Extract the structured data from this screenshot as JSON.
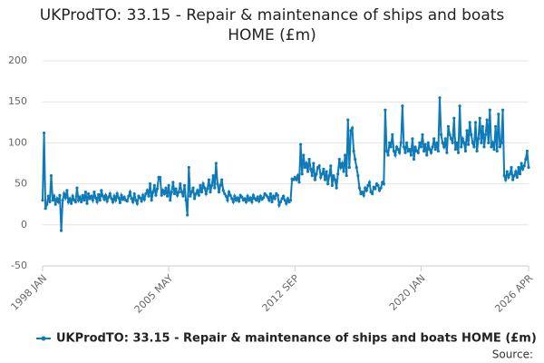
{
  "chart_data": {
    "type": "line",
    "title": "UKProdTO: 33.15 - Repair & maintenance of ships and boats HOME (£m)",
    "source": "Source:",
    "categories": [
      "1998 JAN",
      null,
      null,
      null,
      null,
      null,
      null,
      null,
      null,
      null,
      null,
      null,
      null,
      null,
      null,
      null,
      null,
      null,
      null,
      null,
      null,
      null,
      null,
      null,
      null,
      null,
      null,
      null,
      null,
      null,
      null,
      null,
      null,
      null,
      null,
      null,
      null,
      null,
      null,
      null,
      null,
      null,
      null,
      null,
      null,
      null,
      null,
      null,
      null,
      null,
      null,
      null,
      null,
      null,
      null,
      null,
      null,
      null,
      null,
      null,
      null,
      null,
      null,
      null,
      null,
      null,
      null,
      null,
      null,
      null,
      null,
      null,
      null,
      null,
      null,
      null,
      null,
      null,
      null,
      null,
      null,
      null,
      null,
      null,
      null,
      null,
      null,
      null,
      "2005 MAY",
      null,
      null,
      null,
      null,
      null,
      null,
      null,
      null,
      null,
      null,
      null,
      null,
      null,
      null,
      null,
      null,
      null,
      null,
      null,
      null,
      null,
      null,
      null,
      null,
      null,
      null,
      null,
      null,
      null,
      null,
      null,
      null,
      null,
      null,
      null,
      null,
      null,
      null,
      null,
      null,
      null,
      null,
      null,
      null,
      null,
      null,
      null,
      null,
      null,
      null,
      null,
      null,
      null,
      null,
      null,
      null,
      null,
      null,
      null,
      null,
      null,
      null,
      null,
      null,
      null,
      null,
      null,
      null,
      null,
      null,
      null,
      null,
      null,
      null,
      null,
      null,
      null,
      null,
      null,
      null,
      null,
      null,
      null,
      null,
      null,
      null,
      null,
      "2012 SEP",
      null,
      null,
      null,
      null,
      null,
      null,
      null,
      null,
      null,
      null,
      null,
      null,
      null,
      null,
      null,
      null,
      null,
      null,
      null,
      null,
      null,
      null,
      null,
      null,
      null,
      null,
      null,
      null,
      null,
      null,
      null,
      null,
      null,
      null,
      null,
      null,
      null,
      null,
      null,
      null,
      null,
      null,
      null,
      null,
      null,
      null,
      null,
      null,
      null,
      null,
      null,
      null,
      null,
      null,
      null,
      null,
      null,
      null,
      null,
      null,
      null,
      null,
      null,
      null,
      null,
      null,
      null,
      null,
      null,
      null,
      null,
      null,
      null,
      null,
      null,
      null,
      null,
      null,
      null,
      null,
      null,
      null,
      null,
      null,
      null,
      null,
      null,
      "2020 JAN",
      null,
      null,
      null,
      null,
      null,
      null,
      null,
      null,
      null,
      null,
      null,
      null,
      null,
      null,
      null,
      null,
      null,
      null,
      null,
      null,
      null,
      null,
      null,
      null,
      null,
      null,
      null,
      null,
      null,
      null,
      null,
      null,
      null,
      null,
      null,
      null,
      null,
      null,
      null,
      null,
      null,
      null,
      null,
      null,
      null,
      null,
      null,
      null,
      null,
      null,
      null,
      null,
      null,
      null,
      null,
      null,
      null,
      null,
      null,
      null,
      null,
      null,
      null,
      null,
      null,
      null,
      null,
      null,
      null,
      null,
      null,
      null,
      null,
      null,
      "2026 APR"
    ],
    "series": [
      {
        "name": "UKProdTO: 33.15 - Repair & maintenance of ships and boats HOME (£m)",
        "color": "#0e7bb8",
        "values": [
          30,
          112,
          20,
          25,
          35,
          28,
          60,
          30,
          35,
          25,
          32,
          28,
          36,
          -7,
          30,
          38,
          33,
          42,
          28,
          32,
          26,
          35,
          30,
          28,
          45,
          30,
          34,
          28,
          36,
          30,
          40,
          26,
          38,
          32,
          35,
          30,
          40,
          33,
          28,
          37,
          30,
          42,
          35,
          31,
          36,
          29,
          34,
          38,
          32,
          28,
          35,
          30,
          38,
          33,
          27,
          36,
          31,
          34,
          30,
          29,
          35,
          40,
          32,
          28,
          38,
          30,
          26,
          35,
          33,
          29,
          36,
          31,
          38,
          42,
          35,
          50,
          30,
          40,
          48,
          36,
          44,
          58,
          58,
          36,
          42,
          38,
          45,
          35,
          48,
          30,
          40,
          52,
          38,
          44,
          36,
          40,
          50,
          40,
          35,
          48,
          30,
          12,
          70,
          35,
          40,
          45,
          32,
          38,
          42,
          36,
          48,
          40,
          50,
          45,
          38,
          44,
          55,
          40,
          48,
          60,
          45,
          75,
          50,
          40,
          48,
          55,
          42,
          38,
          35,
          30,
          40,
          36,
          32,
          28,
          35,
          30,
          33,
          29,
          36,
          34,
          30,
          32,
          28,
          35,
          30,
          33,
          28,
          36,
          32,
          30,
          34,
          29,
          35,
          31,
          33,
          38,
          36,
          34,
          30,
          38,
          28,
          35,
          32,
          38,
          36,
          24,
          28,
          32,
          35,
          30,
          26,
          32,
          28,
          30,
          56,
          55,
          58,
          55,
          60,
          52,
          98,
          62,
          85,
          70,
          75,
          65,
          80,
          68,
          60,
          75,
          55,
          62,
          70,
          72,
          58,
          62,
          68,
          55,
          65,
          50,
          60,
          72,
          48,
          60,
          55,
          45,
          62,
          80,
          70,
          75,
          65,
          85,
          60,
          128,
          70,
          115,
          118,
          90,
          80,
          70,
          60,
          45,
          38,
          40,
          36,
          45,
          42,
          48,
          52,
          40,
          38,
          46,
          44,
          50,
          48,
          42,
          45,
          52,
          50,
          140,
          90,
          85,
          100,
          95,
          110,
          90,
          85,
          95,
          92,
          88,
          100,
          145,
          95,
          88,
          100,
          90,
          92,
          85,
          105,
          80,
          95,
          90,
          88,
          100,
          95,
          110,
          90,
          98,
          85,
          100,
          92,
          88,
          95,
          105,
          92,
          100,
          90,
          155,
          110,
          100,
          95,
          105,
          88,
          120,
          110,
          105,
          100,
          130,
          92,
          100,
          88,
          145,
          95,
          105,
          100,
          90,
          115,
          98,
          125,
          110,
          100,
          95,
          125,
          90,
          105,
          130,
          100,
          120,
          95,
          110,
          128,
          100,
          140,
          95,
          100,
          92,
          120,
          90,
          135,
          95,
          100,
          140,
          60,
          55,
          65,
          58,
          62,
          70,
          55,
          60,
          65,
          58,
          70,
          62,
          75,
          68,
          72,
          80,
          90,
          70
        ]
      }
    ],
    "ylim": [
      -50,
      200
    ],
    "yticks": [
      -50,
      0,
      50,
      100,
      150,
      200
    ],
    "grid": true,
    "legend": "bottom"
  }
}
